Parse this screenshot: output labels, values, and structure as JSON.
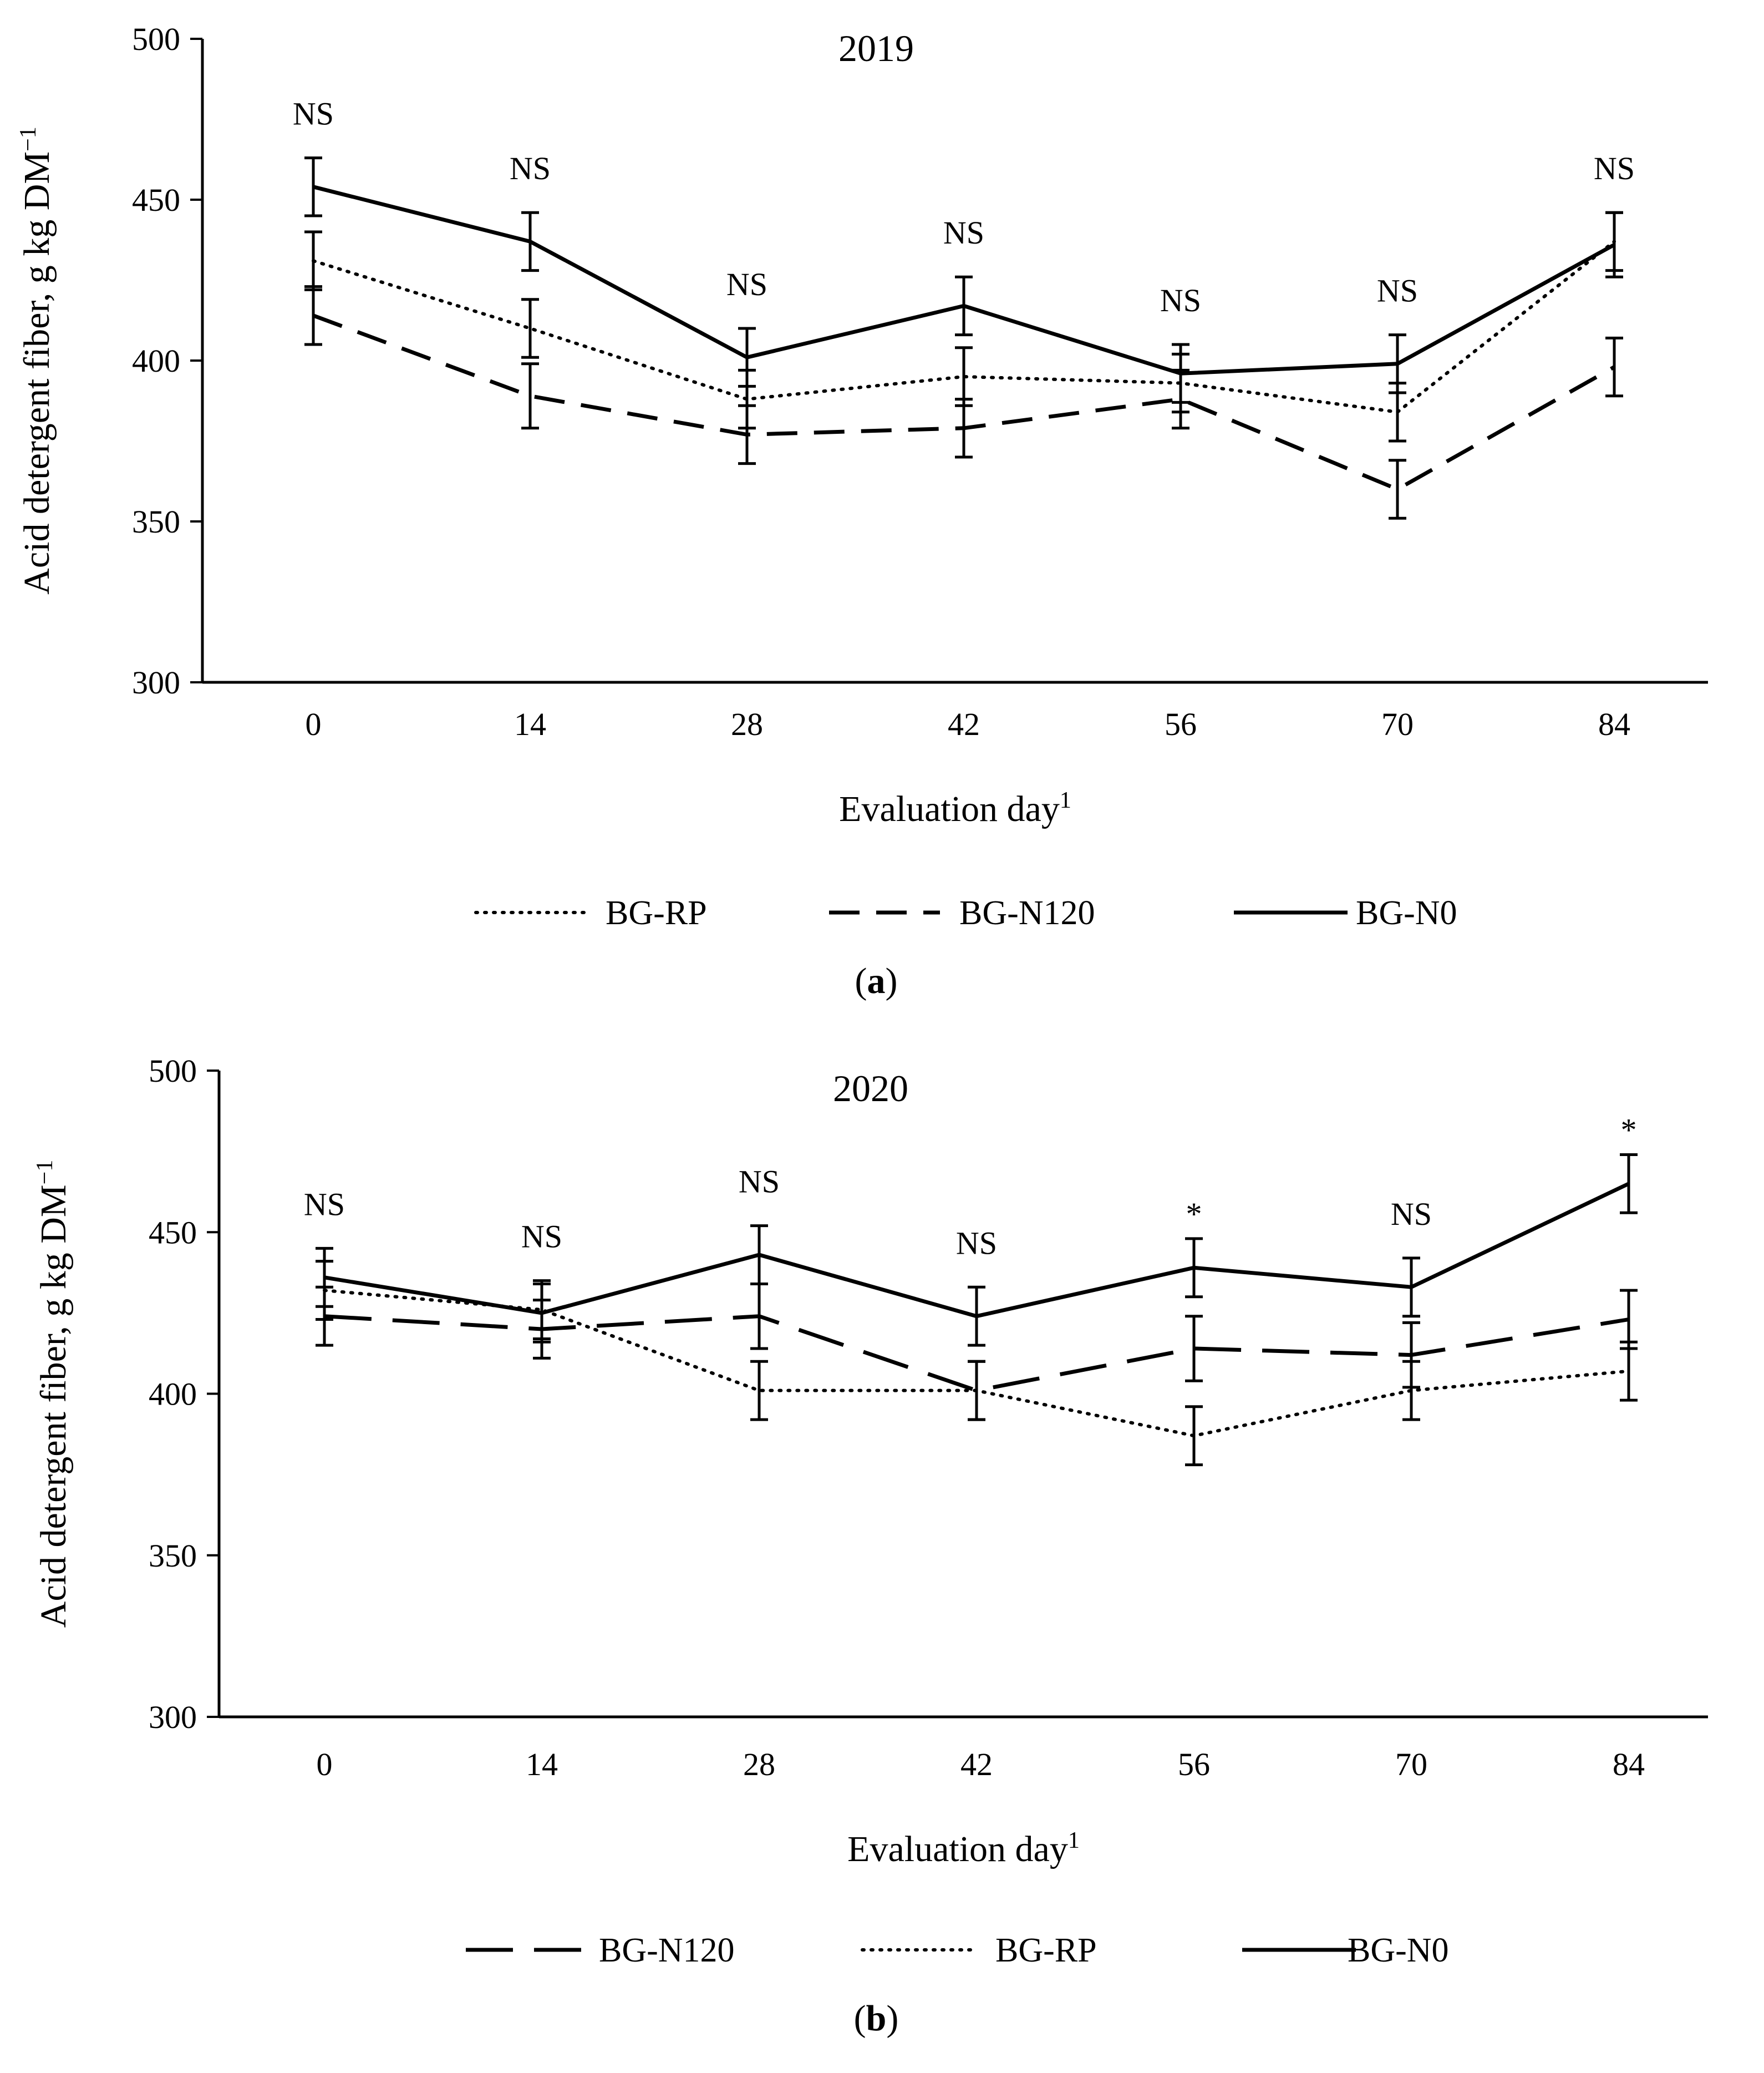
{
  "chart_data": [
    {
      "type": "line",
      "panel_label": "a",
      "title": "2019",
      "xlabel": "Evaluation day",
      "xlabel_superscript": "1",
      "ylabel": "Acid detergent fiber,  g kg DM",
      "ylabel_superscript": "−1",
      "categories": [
        "0",
        "14",
        "28",
        "42",
        "56",
        "70",
        "84"
      ],
      "ylim": [
        300,
        500
      ],
      "yticks": [
        "300",
        "350",
        "400",
        "450",
        "500"
      ],
      "significance": [
        "NS",
        "NS",
        "NS",
        "NS",
        "NS",
        "NS",
        "NS"
      ],
      "legend": [
        "BG-RP",
        "BG-N120",
        "BG-N0"
      ],
      "series": [
        {
          "name": "BG-RP",
          "style": "dotted",
          "values": [
            431,
            410,
            388,
            395,
            393,
            384,
            437
          ],
          "error": [
            9,
            9,
            9,
            9,
            9,
            9,
            9
          ]
        },
        {
          "name": "BG-N120",
          "style": "dashed",
          "values": [
            414,
            389,
            377,
            379,
            388,
            360,
            398
          ],
          "error": [
            9,
            10,
            9,
            9,
            9,
            9,
            9
          ]
        },
        {
          "name": "BG-N0",
          "style": "solid",
          "values": [
            454,
            437,
            401,
            417,
            396,
            399,
            436
          ],
          "error": [
            9,
            9,
            9,
            9,
            9,
            9,
            10
          ]
        }
      ]
    },
    {
      "type": "line",
      "panel_label": "b",
      "title": "2020",
      "xlabel": "Evaluation day",
      "xlabel_superscript": "1",
      "ylabel": "Acid detergent fiber, g kg DM",
      "ylabel_superscript": "−1",
      "categories": [
        "0",
        "14",
        "28",
        "42",
        "56",
        "70",
        "84"
      ],
      "ylim": [
        300,
        500
      ],
      "yticks": [
        "300",
        "350",
        "400",
        "450",
        "500"
      ],
      "significance": [
        "NS",
        "NS",
        "NS",
        "NS",
        "*",
        "NS",
        "*"
      ],
      "legend": [
        "BG-N120",
        "BG-RP",
        "BG-N0"
      ],
      "series": [
        {
          "name": "BG-N120",
          "style": "longdash",
          "values": [
            424,
            420,
            424,
            401,
            414,
            412,
            423
          ],
          "error": [
            9,
            9,
            10,
            9,
            10,
            10,
            9
          ]
        },
        {
          "name": "BG-RP",
          "style": "dotted",
          "values": [
            432,
            426,
            401,
            401,
            387,
            401,
            407
          ],
          "error": [
            9,
            9,
            9,
            9,
            9,
            9,
            9
          ]
        },
        {
          "name": "BG-N0",
          "style": "solid",
          "values": [
            436,
            425,
            443,
            424,
            439,
            433,
            465
          ],
          "error": [
            9,
            9,
            9,
            9,
            9,
            9,
            9
          ]
        }
      ]
    }
  ]
}
